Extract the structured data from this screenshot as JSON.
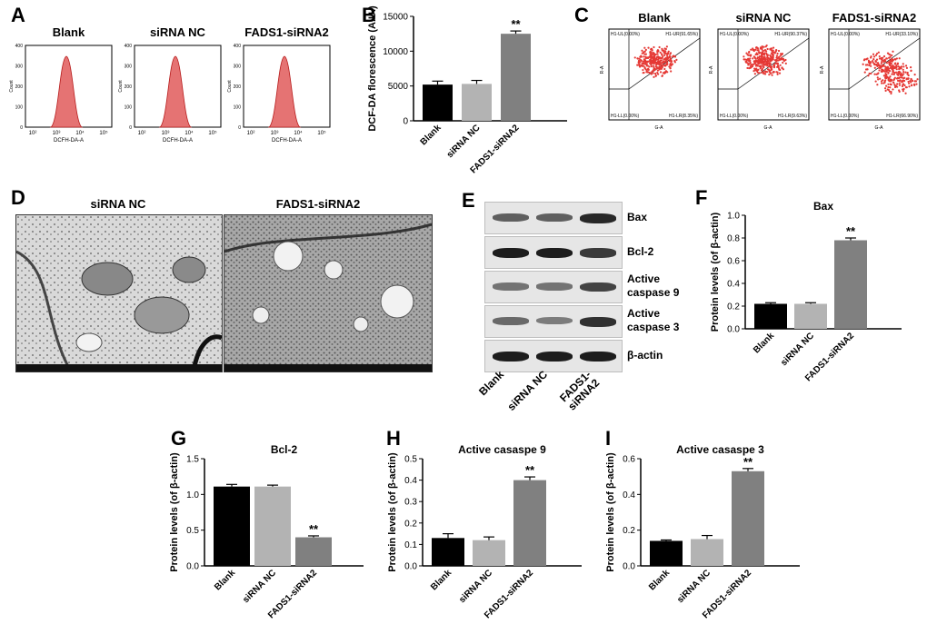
{
  "panels": {
    "A": {
      "label": "A",
      "titles": [
        "Blank",
        "siRNA NC",
        "FADS1-siRNA2"
      ],
      "ylabel": "Count",
      "xlabel": "DCFH-DA-A",
      "yticks": [
        "0",
        "100",
        "200",
        "300",
        "400"
      ],
      "xticks": [
        "10²",
        "10³",
        "10⁴",
        "10⁵"
      ],
      "fill_color": "#e57373",
      "stroke_color": "#b71c1c"
    },
    "B": {
      "label": "B"
    },
    "C": {
      "label": "C",
      "titles": [
        "Blank",
        "siRNA NC",
        "FADS1-siRNA2"
      ],
      "ylabel": "R-A",
      "xlabel": "G-A",
      "quadrants": [
        {
          "ul": "H1-UL(0.00%)",
          "ur": "H1-UR(91.65%)",
          "ll": "H1-LL(0.00%)",
          "lr": "H1-LR(8.35%)"
        },
        {
          "ul": "H1-UL(0.00%)",
          "ur": "H1-UR(90.37%)",
          "ll": "H1-LL(0.00%)",
          "lr": "H1-LR(9.63%)"
        },
        {
          "ul": "H1-UL(0.00%)",
          "ur": "H1-UR(33.10%)",
          "ll": "H1-LL(0.00%)",
          "lr": "H1-LR(66.90%)"
        }
      ],
      "dot_color": "#e53935"
    },
    "D": {
      "label": "D",
      "titles": [
        "siRNA NC",
        "FADS1-siRNA2"
      ]
    },
    "E": {
      "label": "E",
      "lanes": [
        "Blank",
        "siRNA NC",
        "FADS1-\nsiRNA2"
      ],
      "rows": [
        {
          "name": "Bax",
          "intensity": [
            0.55,
            0.55,
            0.85
          ]
        },
        {
          "name": "Bcl-2",
          "intensity": [
            0.9,
            0.9,
            0.75
          ]
        },
        {
          "name": "Active\ncaspase 9",
          "intensity": [
            0.45,
            0.45,
            0.7
          ]
        },
        {
          "name": "Active\ncaspase 3",
          "intensity": [
            0.5,
            0.4,
            0.8
          ]
        },
        {
          "name": "β-actin",
          "intensity": [
            0.9,
            0.9,
            0.9
          ]
        }
      ]
    },
    "F": {
      "label": "F"
    },
    "G": {
      "label": "G"
    },
    "H": {
      "label": "H"
    },
    "I": {
      "label": "I"
    }
  },
  "chart_data": [
    {
      "id": "B",
      "type": "bar",
      "title": "",
      "categories": [
        "Blank",
        "siRNA NC",
        "FADS1-siRNA2"
      ],
      "values": [
        5200,
        5300,
        12500
      ],
      "errors": [
        500,
        500,
        400
      ],
      "colors": [
        "#000000",
        "#b3b3b3",
        "#808080"
      ],
      "ylabel": "DCF-DA florescence (A.U.)",
      "ylim": [
        0,
        15000
      ],
      "yticks": [
        0,
        5000,
        10000,
        15000
      ],
      "ytick_labels": [
        "0",
        "5000",
        "10000",
        "15000"
      ],
      "annotation": "**",
      "annotation_index": 2
    },
    {
      "id": "F",
      "type": "bar",
      "title": "Bax",
      "categories": [
        "Blank",
        "siRNA NC",
        "FADS1-siRNA2"
      ],
      "values": [
        0.22,
        0.22,
        0.78
      ],
      "errors": [
        0.01,
        0.01,
        0.02
      ],
      "colors": [
        "#000000",
        "#b3b3b3",
        "#808080"
      ],
      "ylabel": "Protein levels (of β-actin)",
      "ylim": [
        0,
        1.0
      ],
      "yticks": [
        0,
        0.2,
        0.4,
        0.6,
        0.8,
        1.0
      ],
      "ytick_labels": [
        "0.0",
        "0.2",
        "0.4",
        "0.6",
        "0.8",
        "1.0"
      ],
      "annotation": "**",
      "annotation_index": 2
    },
    {
      "id": "G",
      "type": "bar",
      "title": "Bcl-2",
      "categories": [
        "Blank",
        "siRNA NC",
        "FADS1-siRNA2"
      ],
      "values": [
        1.11,
        1.11,
        0.4
      ],
      "errors": [
        0.03,
        0.02,
        0.02
      ],
      "colors": [
        "#000000",
        "#b3b3b3",
        "#808080"
      ],
      "ylabel": "Protein levels (of β-actin)",
      "ylim": [
        0,
        1.5
      ],
      "yticks": [
        0,
        0.5,
        1.0,
        1.5
      ],
      "ytick_labels": [
        "0.0",
        "0.5",
        "1.0",
        "1.5"
      ],
      "annotation": "**",
      "annotation_index": 2
    },
    {
      "id": "H",
      "type": "bar",
      "title": "Active casaspe 9",
      "categories": [
        "Blank",
        "siRNA NC",
        "FADS1-siRNA2"
      ],
      "values": [
        0.13,
        0.12,
        0.4
      ],
      "errors": [
        0.02,
        0.015,
        0.015
      ],
      "colors": [
        "#000000",
        "#b3b3b3",
        "#808080"
      ],
      "ylabel": "Protein levels (of β-actin)",
      "ylim": [
        0,
        0.5
      ],
      "yticks": [
        0,
        0.1,
        0.2,
        0.3,
        0.4,
        0.5
      ],
      "ytick_labels": [
        "0.0",
        "0.1",
        "0.2",
        "0.3",
        "0.4",
        "0.5"
      ],
      "annotation": "**",
      "annotation_index": 2
    },
    {
      "id": "I",
      "type": "bar",
      "title": "Active casaspe 3",
      "categories": [
        "Blank",
        "siRNA NC",
        "FADS1-siRNA2"
      ],
      "values": [
        0.14,
        0.15,
        0.53
      ],
      "errors": [
        0.005,
        0.02,
        0.015
      ],
      "colors": [
        "#000000",
        "#b3b3b3",
        "#808080"
      ],
      "ylabel": "Protein levels (of β-actin)",
      "ylim": [
        0,
        0.6
      ],
      "yticks": [
        0,
        0.2,
        0.4,
        0.6
      ],
      "ytick_labels": [
        "0.0",
        "0.2",
        "0.4",
        "0.6"
      ],
      "annotation": "**",
      "annotation_index": 2
    }
  ]
}
